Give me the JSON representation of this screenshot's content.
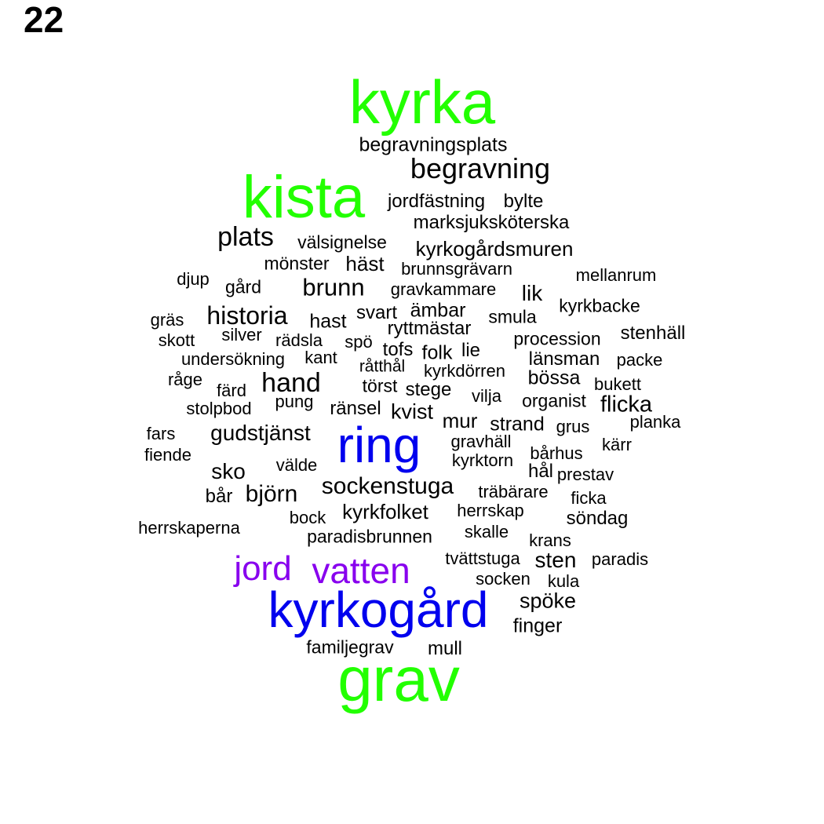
{
  "panel_number": "22",
  "colors": {
    "green": "#22ff00",
    "blue": "#0000ee",
    "purple": "#8800ee",
    "black": "#000000"
  },
  "words": [
    {
      "text": "kyrka",
      "color": "green"
    },
    {
      "text": "begravningsplats",
      "color": "black"
    },
    {
      "text": "begravning",
      "color": "black"
    },
    {
      "text": "kista",
      "color": "green"
    },
    {
      "text": "jordfästning",
      "color": "black"
    },
    {
      "text": "bylte",
      "color": "black"
    },
    {
      "text": "marksjuksköterska",
      "color": "black"
    },
    {
      "text": "plats",
      "color": "black"
    },
    {
      "text": "välsignelse",
      "color": "black"
    },
    {
      "text": "kyrkogårdsmuren",
      "color": "black"
    },
    {
      "text": "mönster",
      "color": "black"
    },
    {
      "text": "häst",
      "color": "black"
    },
    {
      "text": "brunnsgrävarn",
      "color": "black"
    },
    {
      "text": "djup",
      "color": "black"
    },
    {
      "text": "gård",
      "color": "black"
    },
    {
      "text": "brunn",
      "color": "black"
    },
    {
      "text": "gravkammare",
      "color": "black"
    },
    {
      "text": "lik",
      "color": "black"
    },
    {
      "text": "mellanrum",
      "color": "black"
    },
    {
      "text": "kyrkbacke",
      "color": "black"
    },
    {
      "text": "gräs",
      "color": "black"
    },
    {
      "text": "historia",
      "color": "black"
    },
    {
      "text": "svart",
      "color": "black"
    },
    {
      "text": "ämbar",
      "color": "black"
    },
    {
      "text": "hast",
      "color": "black"
    },
    {
      "text": "smula",
      "color": "black"
    },
    {
      "text": "ryttmästar",
      "color": "black"
    },
    {
      "text": "silver",
      "color": "black"
    },
    {
      "text": "skott",
      "color": "black"
    },
    {
      "text": "rädsla",
      "color": "black"
    },
    {
      "text": "spö",
      "color": "black"
    },
    {
      "text": "procession",
      "color": "black"
    },
    {
      "text": "stenhäll",
      "color": "black"
    },
    {
      "text": "tofs",
      "color": "black"
    },
    {
      "text": "folk",
      "color": "black"
    },
    {
      "text": "lie",
      "color": "black"
    },
    {
      "text": "undersökning",
      "color": "black"
    },
    {
      "text": "kant",
      "color": "black"
    },
    {
      "text": "råtthål",
      "color": "black"
    },
    {
      "text": "länsman",
      "color": "black"
    },
    {
      "text": "packe",
      "color": "black"
    },
    {
      "text": "kyrkdörren",
      "color": "black"
    },
    {
      "text": "råge",
      "color": "black"
    },
    {
      "text": "hand",
      "color": "black"
    },
    {
      "text": "törst",
      "color": "black"
    },
    {
      "text": "bössa",
      "color": "black"
    },
    {
      "text": "bukett",
      "color": "black"
    },
    {
      "text": "färd",
      "color": "black"
    },
    {
      "text": "stege",
      "color": "black"
    },
    {
      "text": "vilja",
      "color": "black"
    },
    {
      "text": "pung",
      "color": "black"
    },
    {
      "text": "organist",
      "color": "black"
    },
    {
      "text": "stolpbod",
      "color": "black"
    },
    {
      "text": "ränsel",
      "color": "black"
    },
    {
      "text": "kvist",
      "color": "black"
    },
    {
      "text": "flicka",
      "color": "black"
    },
    {
      "text": "mur",
      "color": "black"
    },
    {
      "text": "strand",
      "color": "black"
    },
    {
      "text": "planka",
      "color": "black"
    },
    {
      "text": "grus",
      "color": "black"
    },
    {
      "text": "fars",
      "color": "black"
    },
    {
      "text": "gudstjänst",
      "color": "black"
    },
    {
      "text": "ring",
      "color": "blue"
    },
    {
      "text": "gravhäll",
      "color": "black"
    },
    {
      "text": "kärr",
      "color": "black"
    },
    {
      "text": "fiende",
      "color": "black"
    },
    {
      "text": "bårhus",
      "color": "black"
    },
    {
      "text": "kyrktorn",
      "color": "black"
    },
    {
      "text": "välde",
      "color": "black"
    },
    {
      "text": "sko",
      "color": "black"
    },
    {
      "text": "hål",
      "color": "black"
    },
    {
      "text": "prestav",
      "color": "black"
    },
    {
      "text": "sockenstuga",
      "color": "black"
    },
    {
      "text": "bår",
      "color": "black"
    },
    {
      "text": "björn",
      "color": "black"
    },
    {
      "text": "träbärare",
      "color": "black"
    },
    {
      "text": "ficka",
      "color": "black"
    },
    {
      "text": "kyrkfolket",
      "color": "black"
    },
    {
      "text": "herrskap",
      "color": "black"
    },
    {
      "text": "bock",
      "color": "black"
    },
    {
      "text": "söndag",
      "color": "black"
    },
    {
      "text": "herrskaperna",
      "color": "black"
    },
    {
      "text": "skalle",
      "color": "black"
    },
    {
      "text": "paradisbrunnen",
      "color": "black"
    },
    {
      "text": "krans",
      "color": "black"
    },
    {
      "text": "jord",
      "color": "purple"
    },
    {
      "text": "vatten",
      "color": "purple"
    },
    {
      "text": "tvättstuga",
      "color": "black"
    },
    {
      "text": "sten",
      "color": "black"
    },
    {
      "text": "paradis",
      "color": "black"
    },
    {
      "text": "socken",
      "color": "black"
    },
    {
      "text": "kula",
      "color": "black"
    },
    {
      "text": "kyrkogård",
      "color": "blue"
    },
    {
      "text": "spöke",
      "color": "black"
    },
    {
      "text": "finger",
      "color": "black"
    },
    {
      "text": "familjegrav",
      "color": "black"
    },
    {
      "text": "mull",
      "color": "black"
    },
    {
      "text": "grav",
      "color": "green"
    }
  ]
}
